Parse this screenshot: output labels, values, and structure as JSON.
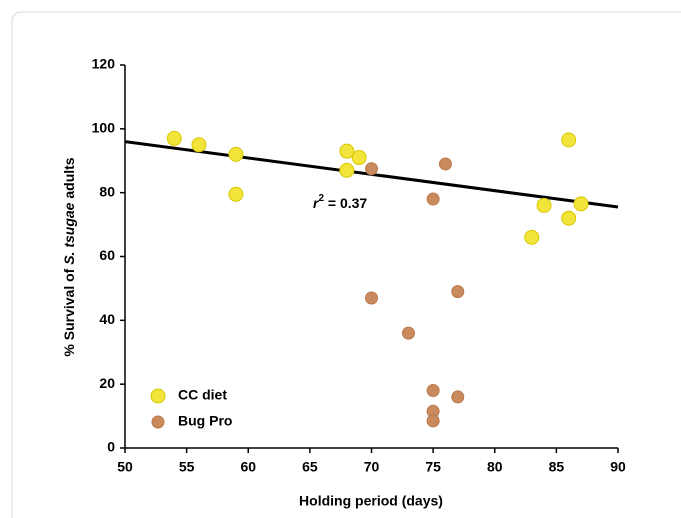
{
  "chart_data": {
    "type": "scatter",
    "x_label": "Holding period (days)",
    "y_label": [
      "% Survival of ",
      "S. tsugae",
      " adults"
    ],
    "annotation": [
      "r",
      "2",
      " = 0.37"
    ],
    "xlim": [
      50,
      90
    ],
    "xticks": [
      50,
      55,
      60,
      65,
      70,
      75,
      80,
      85,
      90
    ],
    "ylim": [
      0,
      120
    ],
    "yticks": [
      0,
      20,
      40,
      60,
      80,
      100,
      120
    ],
    "grid": false,
    "legend": "lower left",
    "series": [
      {
        "name": "CC diet",
        "color": "#f2e43a",
        "x": [
          54,
          56,
          59,
          59,
          68,
          68,
          69,
          83,
          84,
          86,
          86,
          87
        ],
        "values": [
          97,
          95,
          92,
          79.5,
          93,
          87,
          91,
          66,
          76,
          96.5,
          72,
          76.5
        ]
      },
      {
        "name": "Bug Pro",
        "color": "#c98a5e",
        "x": [
          70,
          70,
          73,
          75,
          76,
          75,
          75,
          75,
          77,
          77
        ],
        "values": [
          87.5,
          47,
          36,
          78,
          89,
          18,
          11.5,
          8.5,
          49,
          16
        ]
      }
    ],
    "trendline": {
      "color": "#000000",
      "x": [
        50,
        90
      ],
      "values": [
        96,
        75.5
      ]
    }
  }
}
